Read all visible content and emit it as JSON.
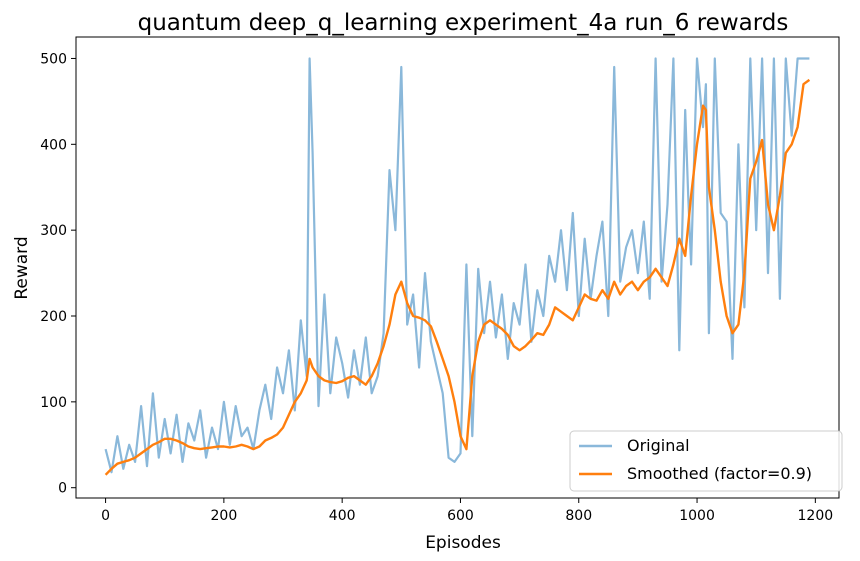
{
  "chart_data": {
    "type": "line",
    "title": "quantum deep_q_learning experiment_4a run_6 rewards",
    "xlabel": "Episodes",
    "ylabel": "Reward",
    "xlim": [
      -50,
      1240
    ],
    "ylim": [
      -12,
      525
    ],
    "xticks": [
      0,
      200,
      400,
      600,
      800,
      1000,
      1200
    ],
    "yticks": [
      0,
      100,
      200,
      300,
      400,
      500
    ],
    "grid": false,
    "legend_position": "bottom-right",
    "series": [
      {
        "name": "Original",
        "color": "#8ab8da",
        "x": [
          0,
          10,
          20,
          30,
          40,
          50,
          60,
          70,
          80,
          90,
          100,
          110,
          120,
          130,
          140,
          150,
          160,
          170,
          180,
          190,
          200,
          210,
          220,
          230,
          240,
          250,
          260,
          270,
          280,
          290,
          300,
          310,
          320,
          330,
          340,
          345,
          350,
          360,
          370,
          380,
          390,
          400,
          410,
          420,
          430,
          440,
          450,
          460,
          470,
          480,
          490,
          500,
          510,
          520,
          530,
          540,
          550,
          560,
          570,
          580,
          590,
          600,
          610,
          620,
          630,
          640,
          650,
          660,
          670,
          680,
          690,
          700,
          710,
          720,
          730,
          740,
          750,
          760,
          770,
          780,
          790,
          800,
          810,
          820,
          830,
          840,
          850,
          860,
          870,
          880,
          890,
          900,
          910,
          920,
          930,
          940,
          950,
          960,
          970,
          980,
          985,
          990,
          1000,
          1010,
          1015,
          1020,
          1030,
          1040,
          1050,
          1060,
          1070,
          1080,
          1090,
          1100,
          1110,
          1120,
          1130,
          1140,
          1150,
          1160,
          1170,
          1180,
          1190
        ],
        "y": [
          45,
          18,
          60,
          22,
          50,
          30,
          95,
          25,
          110,
          35,
          80,
          40,
          85,
          30,
          75,
          55,
          90,
          35,
          70,
          45,
          100,
          50,
          95,
          60,
          70,
          45,
          90,
          120,
          80,
          140,
          110,
          160,
          90,
          195,
          130,
          500,
          390,
          95,
          225,
          110,
          175,
          145,
          105,
          160,
          120,
          175,
          110,
          130,
          180,
          370,
          300,
          490,
          190,
          225,
          140,
          250,
          170,
          140,
          110,
          35,
          30,
          40,
          260,
          60,
          255,
          180,
          240,
          175,
          225,
          150,
          215,
          190,
          260,
          170,
          230,
          200,
          270,
          240,
          300,
          230,
          320,
          200,
          290,
          220,
          270,
          310,
          200,
          490,
          240,
          280,
          300,
          250,
          310,
          220,
          500,
          240,
          330,
          500,
          160,
          440,
          340,
          260,
          500,
          420,
          470,
          180,
          500,
          320,
          310,
          150,
          400,
          210,
          500,
          300,
          500,
          250,
          500,
          220,
          500,
          410,
          500,
          500,
          500
        ]
      },
      {
        "name": "Smoothed (factor=0.9)",
        "color": "#ff7f0e",
        "x": [
          0,
          10,
          20,
          30,
          40,
          50,
          60,
          70,
          80,
          90,
          100,
          110,
          120,
          130,
          140,
          150,
          160,
          170,
          180,
          190,
          200,
          210,
          220,
          230,
          240,
          250,
          260,
          270,
          280,
          290,
          300,
          310,
          320,
          330,
          340,
          345,
          350,
          360,
          370,
          380,
          390,
          400,
          410,
          420,
          430,
          440,
          450,
          460,
          470,
          480,
          490,
          500,
          510,
          520,
          530,
          540,
          550,
          560,
          570,
          580,
          590,
          600,
          610,
          620,
          630,
          640,
          650,
          660,
          670,
          680,
          690,
          700,
          710,
          720,
          730,
          740,
          750,
          760,
          770,
          780,
          790,
          800,
          810,
          820,
          830,
          840,
          850,
          860,
          870,
          880,
          890,
          900,
          910,
          920,
          930,
          940,
          950,
          960,
          970,
          980,
          990,
          1000,
          1010,
          1015,
          1020,
          1030,
          1040,
          1050,
          1060,
          1070,
          1080,
          1090,
          1100,
          1110,
          1120,
          1130,
          1140,
          1150,
          1160,
          1170,
          1180,
          1190
        ],
        "y": [
          15,
          22,
          28,
          30,
          32,
          35,
          40,
          45,
          50,
          53,
          57,
          57,
          55,
          52,
          48,
          46,
          45,
          46,
          47,
          48,
          48,
          47,
          48,
          50,
          48,
          45,
          48,
          55,
          58,
          62,
          70,
          85,
          100,
          110,
          125,
          150,
          140,
          130,
          125,
          123,
          122,
          124,
          128,
          130,
          125,
          120,
          130,
          145,
          165,
          190,
          225,
          240,
          215,
          200,
          198,
          195,
          188,
          170,
          150,
          130,
          100,
          60,
          45,
          130,
          170,
          190,
          195,
          190,
          185,
          178,
          165,
          160,
          165,
          172,
          180,
          178,
          190,
          210,
          205,
          200,
          195,
          210,
          225,
          220,
          218,
          230,
          220,
          240,
          225,
          235,
          240,
          230,
          240,
          245,
          255,
          245,
          235,
          260,
          290,
          270,
          340,
          400,
          445,
          440,
          350,
          300,
          240,
          200,
          180,
          190,
          250,
          360,
          380,
          405,
          330,
          300,
          340,
          390,
          400,
          420,
          470,
          475
        ]
      }
    ]
  }
}
